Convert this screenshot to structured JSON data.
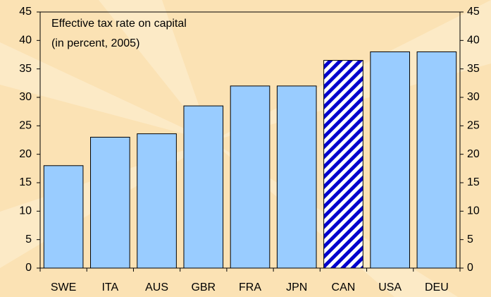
{
  "chart_data": {
    "type": "bar",
    "title": "Effective tax rate on capital",
    "subtitle": "(in percent, 2005)",
    "categories": [
      "SWE",
      "ITA",
      "AUS",
      "GBR",
      "FRA",
      "JPN",
      "CAN",
      "USA",
      "DEU"
    ],
    "values": [
      18,
      23,
      23.6,
      28.5,
      32,
      32,
      36.5,
      38,
      38
    ],
    "hatched": [
      false,
      false,
      false,
      false,
      false,
      false,
      true,
      false,
      false
    ],
    "color": "#99ccff",
    "hatch_color": "#0000cc",
    "ylim": [
      0,
      45
    ],
    "yticks": [
      0,
      5,
      10,
      15,
      20,
      25,
      30,
      35,
      40,
      45
    ],
    "y2lim": [
      0,
      45
    ],
    "y2ticks": [
      0,
      5,
      10,
      15,
      20,
      25,
      30,
      35,
      40,
      45
    ],
    "grid": false
  }
}
